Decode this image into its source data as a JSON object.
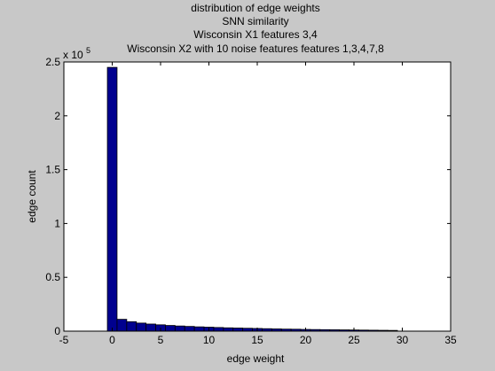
{
  "colors": {
    "figure_background": "#c8c8c8",
    "plot_background": "#ffffff",
    "bar_fill": "#00008f",
    "bar_edge": "#000000"
  },
  "chart_data": {
    "type": "bar",
    "title": [
      "distribution of edge weights",
      "SNN similarity",
      "Wisconsin X1 features 3,4",
      "Wisconsin X2 with 10 noise features features 1,3,4,7,8"
    ],
    "xlabel": "edge weight",
    "ylabel": "edge count",
    "y_exponent_base": "x 10",
    "y_exponent": "5",
    "xlim": [
      -5,
      35
    ],
    "ylim": [
      0,
      250000
    ],
    "xticks": [
      -5,
      0,
      5,
      10,
      15,
      20,
      25,
      30,
      35
    ],
    "yticks": [
      0,
      50000,
      100000,
      150000,
      200000,
      250000
    ],
    "xtick_labels": [
      "-5",
      "0",
      "5",
      "10",
      "15",
      "20",
      "25",
      "30",
      "35"
    ],
    "ytick_labels": [
      "0",
      "0.5",
      "1",
      "1.5",
      "2",
      "2.5"
    ],
    "grid": false,
    "bin_width": 1,
    "x": [
      0,
      1,
      2,
      3,
      4,
      5,
      6,
      7,
      8,
      9,
      10,
      11,
      12,
      13,
      14,
      15,
      16,
      17,
      18,
      19,
      20,
      21,
      22,
      23,
      24,
      25,
      26,
      27,
      28,
      29
    ],
    "values": [
      245000,
      11000,
      8800,
      7500,
      6600,
      5900,
      5300,
      4800,
      4400,
      4000,
      3700,
      3400,
      3100,
      2900,
      2700,
      2500,
      2300,
      2100,
      1900,
      1800,
      1600,
      1500,
      1400,
      1300,
      1200,
      1100,
      1000,
      900,
      800,
      700
    ]
  }
}
